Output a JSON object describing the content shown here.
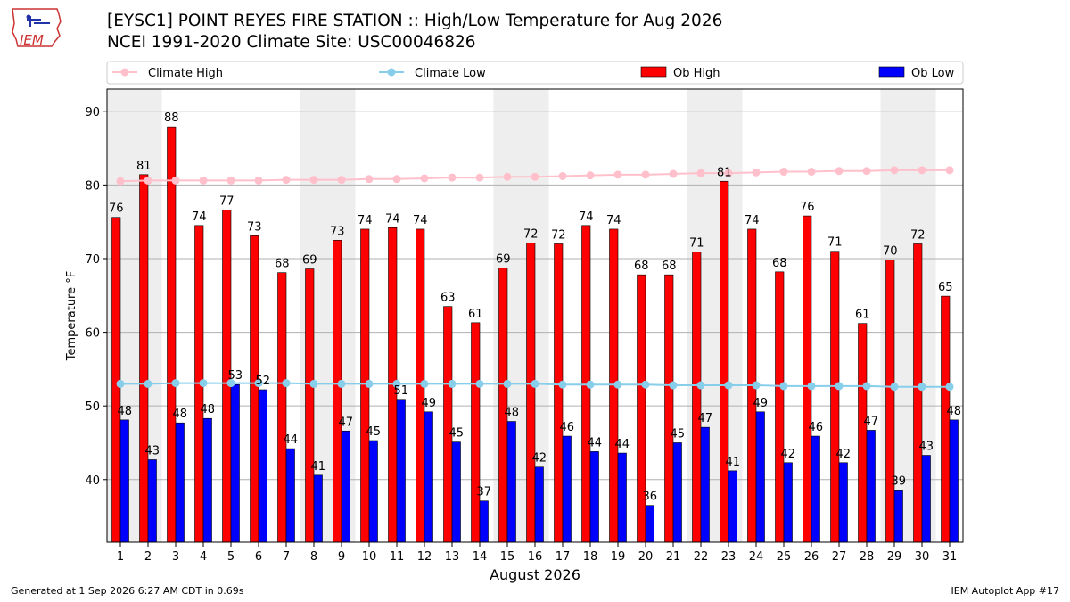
{
  "header": {
    "title_line1": "[EYSC1] POINT REYES FIRE STATION :: High/Low Temperature for Aug 2026",
    "title_line2": "NCEI 1991-2020 Climate Site: USC00046826",
    "logo_text": "IEM"
  },
  "footer": {
    "generated": "Generated at 1 Sep 2026 6:27 AM CDT in 0.69s",
    "app": "IEM Autoplot App #17"
  },
  "colors": {
    "climate_high": "#ffc0cb",
    "climate_low": "#87ceeb",
    "ob_high": "#ff0000",
    "ob_low": "#0000ff",
    "week_band": "#eeeeee",
    "grid": "#b0b0b0"
  },
  "chart_data": {
    "type": "bar",
    "xlabel": "August 2026",
    "ylabel": "Temperature °F",
    "ylim": [
      31.5,
      93
    ],
    "yticks": [
      40,
      50,
      60,
      70,
      80,
      90
    ],
    "grid": "horizontal",
    "legend_placement": "top",
    "categories": [
      "1",
      "2",
      "3",
      "4",
      "5",
      "6",
      "7",
      "8",
      "9",
      "10",
      "11",
      "12",
      "13",
      "14",
      "15",
      "16",
      "17",
      "18",
      "19",
      "20",
      "21",
      "22",
      "23",
      "24",
      "25",
      "26",
      "27",
      "28",
      "29",
      "30",
      "31"
    ],
    "weekend_bands": [
      [
        1,
        2
      ],
      [
        8,
        9
      ],
      [
        15,
        16
      ],
      [
        22,
        23
      ],
      [
        29,
        30
      ]
    ],
    "series": [
      {
        "name": "Ob High",
        "kind": "bar",
        "values": [
          75.6,
          81.4,
          87.9,
          74.5,
          76.6,
          73.1,
          68.1,
          68.6,
          72.5,
          74.0,
          74.2,
          74.0,
          63.5,
          61.3,
          68.7,
          72.1,
          72.0,
          74.5,
          74.0,
          67.8,
          67.8,
          70.9,
          80.5,
          74.0,
          68.2,
          75.8,
          71.0,
          61.2,
          69.8,
          72.0,
          64.9
        ]
      },
      {
        "name": "Ob Low",
        "kind": "bar",
        "values": [
          48.1,
          42.7,
          47.7,
          48.3,
          52.9,
          52.2,
          44.2,
          40.6,
          46.6,
          45.3,
          50.9,
          49.2,
          45.1,
          37.1,
          47.9,
          41.7,
          45.9,
          43.8,
          43.6,
          36.5,
          45.0,
          47.1,
          41.2,
          49.2,
          42.3,
          45.9,
          42.3,
          46.7,
          38.6,
          43.3,
          48.1
        ]
      },
      {
        "name": "Climate High",
        "kind": "line",
        "values": [
          80.5,
          80.6,
          80.6,
          80.6,
          80.6,
          80.6,
          80.7,
          80.7,
          80.7,
          80.8,
          80.8,
          80.9,
          81.0,
          81.0,
          81.1,
          81.1,
          81.2,
          81.3,
          81.4,
          81.4,
          81.5,
          81.6,
          81.6,
          81.7,
          81.8,
          81.8,
          81.9,
          81.9,
          82.0,
          82.0,
          82.0
        ]
      },
      {
        "name": "Climate Low",
        "kind": "line",
        "values": [
          53.0,
          53.0,
          53.1,
          53.1,
          53.1,
          53.1,
          53.1,
          53.0,
          53.0,
          53.0,
          53.0,
          53.0,
          53.0,
          53.0,
          53.0,
          53.0,
          52.9,
          52.9,
          52.9,
          52.9,
          52.8,
          52.8,
          52.8,
          52.8,
          52.7,
          52.7,
          52.7,
          52.7,
          52.6,
          52.6,
          52.6
        ]
      }
    ],
    "high_labels": [
      "76",
      "81",
      "88",
      "74",
      "77",
      "73",
      "68",
      "69",
      "73",
      "74",
      "74",
      "74",
      "63",
      "61",
      "69",
      "72",
      "72",
      "74",
      "74",
      "68",
      "68",
      "71",
      "81",
      "74",
      "68",
      "76",
      "71",
      "61",
      "70",
      "72",
      "65"
    ],
    "low_labels": [
      "48",
      "43",
      "48",
      "48",
      "53",
      "52",
      "44",
      "41",
      "47",
      "45",
      "51",
      "49",
      "45",
      "37",
      "48",
      "42",
      "46",
      "44",
      "44",
      "36",
      "45",
      "47",
      "41",
      "49",
      "42",
      "46",
      "42",
      "47",
      "39",
      "43",
      "48"
    ]
  }
}
